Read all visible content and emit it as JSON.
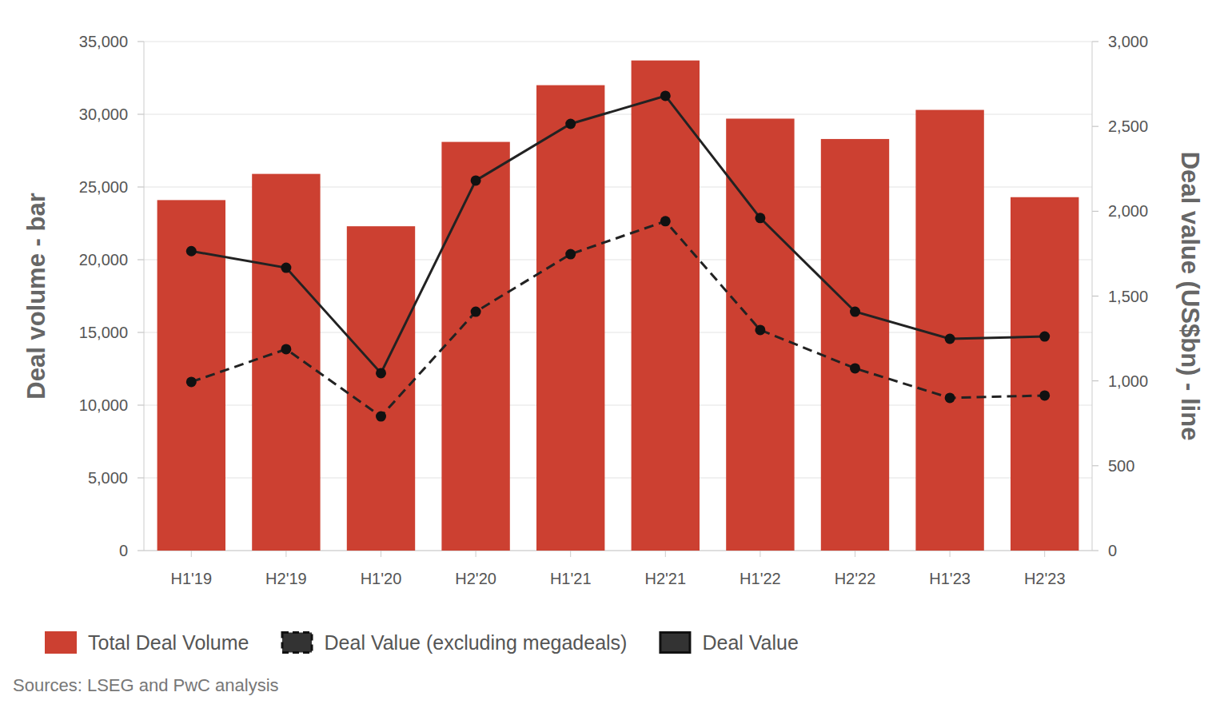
{
  "chart_data": {
    "type": "bar",
    "y_label": "Deal volume - bar",
    "y2_label": "Deal value (US$bn) - line",
    "source": "Sources: LSEG and PwC analysis",
    "categories": [
      "H1'19",
      "H2'19",
      "H1'20",
      "H2'20",
      "H1'21",
      "H2'21",
      "H1'22",
      "H2'22",
      "H1'23",
      "H2'23"
    ],
    "series": [
      {
        "name": "Total Deal Volume",
        "type": "bar",
        "color": "#cc4031",
        "values": [
          24100,
          25900,
          22300,
          28100,
          32000,
          33700,
          29700,
          28300,
          30300,
          24300
        ]
      },
      {
        "name": "Deal Value (excluding megadeals)",
        "type": "line",
        "axis": "y2",
        "color": "#222222",
        "line_style": "dashed",
        "marker": "circle",
        "values": [
          994,
          1187,
          791,
          1408,
          1747,
          1941,
          1300,
          1074,
          900,
          914
        ]
      },
      {
        "name": "Deal Value",
        "type": "line",
        "axis": "y2",
        "color": "#222222",
        "line_style": "solid",
        "marker": "circle",
        "values": [
          1765,
          1667,
          1046,
          2181,
          2515,
          2680,
          1960,
          1408,
          1248,
          1262
        ]
      }
    ],
    "ylim": [
      0,
      35000
    ],
    "yticks": [
      0,
      {
        "value": 5000,
        "label": "5,000"
      },
      {
        "value": 10000,
        "label": "10,000"
      },
      {
        "value": 15000,
        "label": "15,000"
      },
      {
        "value": 20000,
        "label": "20,000"
      },
      {
        "value": 25000,
        "label": "25,000"
      },
      {
        "value": 30000,
        "label": "30,000"
      },
      {
        "value": 35000,
        "label": "35,000"
      }
    ],
    "y2lim": [
      0,
      3000
    ],
    "y2ticks": [
      0,
      500,
      {
        "value": 1000,
        "label": "1,000"
      },
      {
        "value": 1500,
        "label": "1,500"
      },
      {
        "value": 2000,
        "label": "2,000"
      },
      {
        "value": 2500,
        "label": "2,500"
      },
      {
        "value": 3000,
        "label": "3,000"
      }
    ],
    "grid": true,
    "legend": "bottom"
  }
}
